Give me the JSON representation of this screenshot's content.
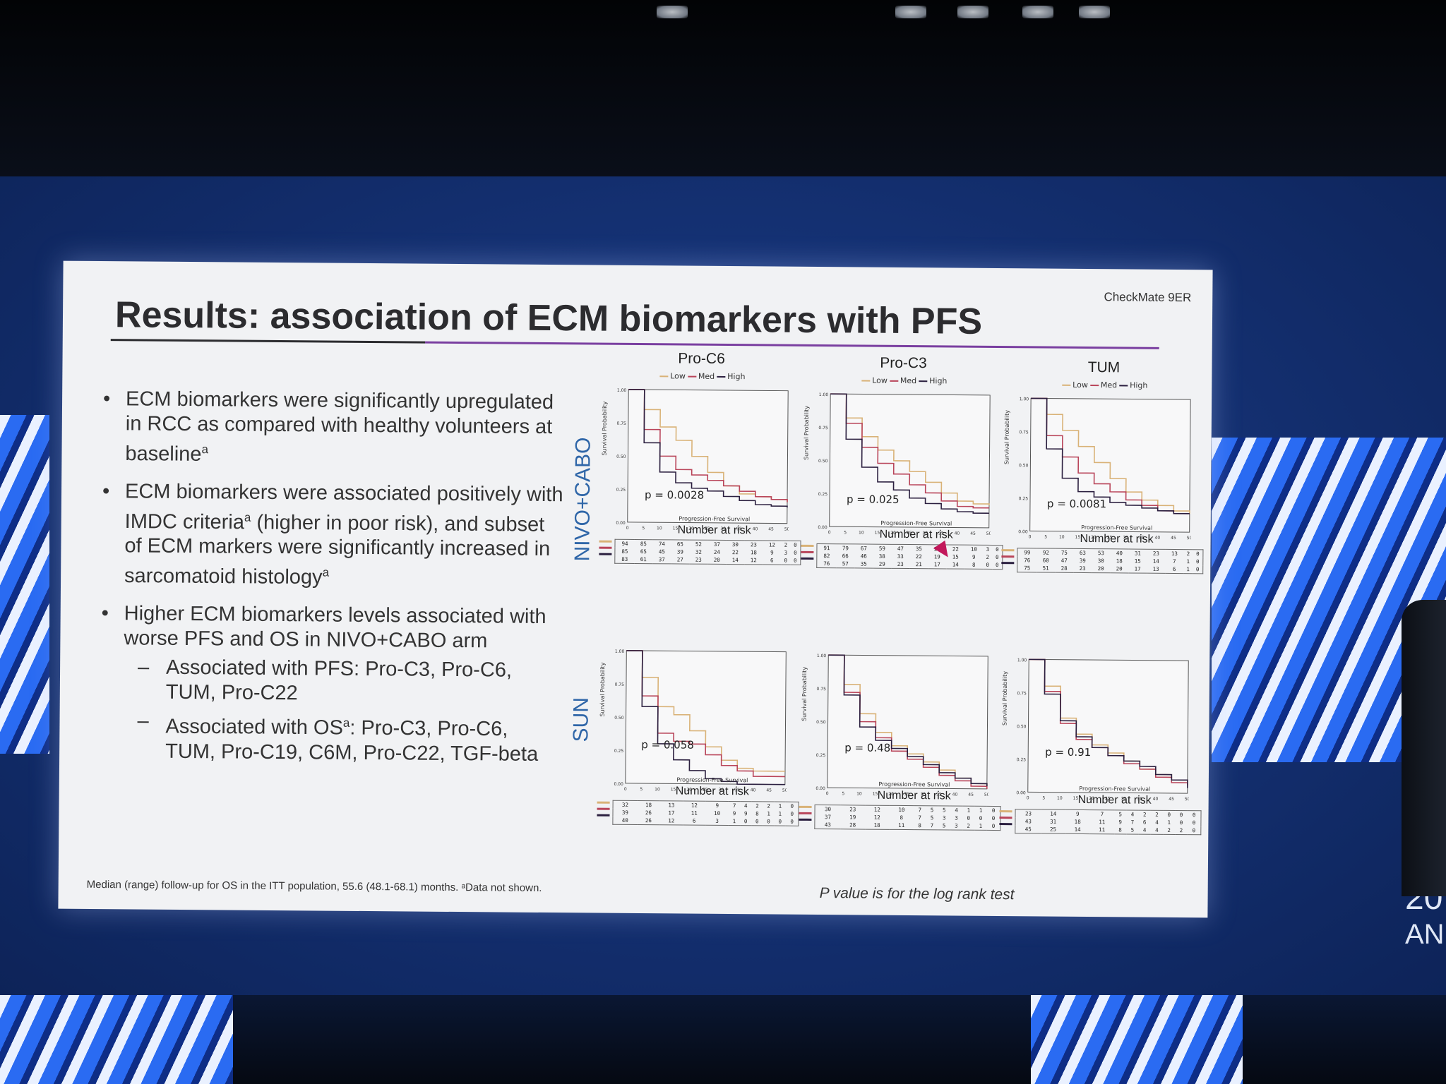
{
  "slide": {
    "title": "Results: association of ECM biomarkers with PFS",
    "study_tag": "CheckMate 9ER",
    "bullets": [
      {
        "text": "ECM biomarkers were significantly upregulated in RCC as compared with healthy volunteers at baseline",
        "sup": "a"
      },
      {
        "text": "ECM biomarkers were associated positively with IMDC criteria",
        "sup": "a",
        "text2": " (higher in poor risk), and subset of ECM markers were significantly increased in sarcomatoid histology",
        "sup2": "a"
      },
      {
        "text": "Higher ECM biomarkers levels associated with worse PFS and OS in NIVO+CABO arm"
      }
    ],
    "sub_bullets": [
      {
        "lead": "Associated with PFS: Pro-C3, Pro-C6, TUM, Pro-C22"
      },
      {
        "lead": "Associated with OS",
        "sup": "a",
        "rest": ": Pro-C3, Pro-C6, TUM, Pro-C19, C6M, Pro-C22, TGF-beta"
      }
    ],
    "bullet_glyph": "•",
    "dash_glyph": "–",
    "footnote": "Median (range) follow-up for OS in the ITT population, 55.6 (48.1-68.1) months. ᵃData not shown.",
    "pvalue_note": "P value is for the log rank test",
    "row_labels": [
      "NIVO+CABO",
      "SUN"
    ]
  },
  "event_text": {
    "year_fragment": "20",
    "name_fragment": "AN"
  },
  "legend": {
    "low": "Low",
    "med": "Med",
    "high": "High"
  },
  "colors": {
    "low": "#d9b277",
    "med": "#b9455a",
    "high": "#2b1f3f",
    "row_label": "#2f66a8",
    "title_rule": "#7a3fa0"
  },
  "axis_text": {
    "ylabel": "Survival Probability",
    "xlabel": "Progression-Free Survival",
    "number_at_risk": "Number at risk"
  },
  "chart_data": [
    {
      "type": "line",
      "panel": "NIVO+CABO / Pro-C6",
      "title": "Pro-C6",
      "pvalue": "p = 0.0028",
      "x": [
        0,
        5,
        10,
        15,
        20,
        25,
        30,
        35,
        40,
        45,
        50
      ],
      "series": [
        {
          "name": "Low",
          "values": [
            1.0,
            0.85,
            0.72,
            0.62,
            0.5,
            0.38,
            0.28,
            0.22,
            0.2,
            0.18,
            0.16
          ]
        },
        {
          "name": "Med",
          "values": [
            1.0,
            0.7,
            0.5,
            0.4,
            0.36,
            0.32,
            0.28,
            0.24,
            0.2,
            0.18,
            0.16
          ]
        },
        {
          "name": "High",
          "values": [
            1.0,
            0.6,
            0.38,
            0.3,
            0.26,
            0.24,
            0.2,
            0.17,
            0.14,
            0.13,
            0.12
          ]
        }
      ],
      "risk_table": [
        [
          "94",
          "85",
          "74",
          "65",
          "52",
          "37",
          "30",
          "23",
          "12",
          "2",
          "0"
        ],
        [
          "85",
          "65",
          "45",
          "39",
          "32",
          "24",
          "22",
          "18",
          "9",
          "3",
          "0"
        ],
        [
          "83",
          "61",
          "37",
          "27",
          "23",
          "20",
          "14",
          "12",
          "6",
          "0",
          "0"
        ]
      ],
      "ylim": [
        0,
        1
      ],
      "yticks": [
        "0.00",
        "0.25",
        "0.50",
        "0.75",
        "1.00"
      ],
      "xticks": [
        "0",
        "5",
        "10",
        "15",
        "20",
        "25",
        "30",
        "35",
        "40",
        "45",
        "50"
      ]
    },
    {
      "type": "line",
      "panel": "NIVO+CABO / Pro-C3",
      "title": "Pro-C3",
      "pvalue": "p = 0.025",
      "x": [
        0,
        5,
        10,
        15,
        20,
        25,
        30,
        35,
        40,
        45,
        50
      ],
      "series": [
        {
          "name": "Low",
          "values": [
            1.0,
            0.82,
            0.68,
            0.58,
            0.5,
            0.42,
            0.34,
            0.26,
            0.2,
            0.18,
            0.17
          ]
        },
        {
          "name": "Med",
          "values": [
            1.0,
            0.78,
            0.6,
            0.48,
            0.4,
            0.32,
            0.26,
            0.2,
            0.16,
            0.15,
            0.15
          ]
        },
        {
          "name": "High",
          "values": [
            1.0,
            0.66,
            0.45,
            0.34,
            0.28,
            0.22,
            0.18,
            0.14,
            0.12,
            0.11,
            0.11
          ]
        }
      ],
      "risk_table": [
        [
          "91",
          "79",
          "67",
          "59",
          "47",
          "35",
          "27",
          "22",
          "10",
          "3",
          "0"
        ],
        [
          "82",
          "66",
          "46",
          "38",
          "33",
          "22",
          "19",
          "15",
          "9",
          "2",
          "0"
        ],
        [
          "76",
          "57",
          "35",
          "29",
          "23",
          "21",
          "17",
          "14",
          "8",
          "0",
          "0"
        ]
      ],
      "ylim": [
        0,
        1
      ],
      "yticks": [
        "0.00",
        "0.25",
        "0.50",
        "0.75",
        "1.00"
      ],
      "xticks": [
        "0",
        "5",
        "10",
        "15",
        "20",
        "25",
        "30",
        "35",
        "40",
        "45",
        "50"
      ]
    },
    {
      "type": "line",
      "panel": "NIVO+CABO / TUM",
      "title": "TUM",
      "pvalue": "p = 0.0081",
      "x": [
        0,
        5,
        10,
        15,
        20,
        25,
        30,
        35,
        40,
        45,
        50
      ],
      "series": [
        {
          "name": "Low",
          "values": [
            1.0,
            0.88,
            0.76,
            0.64,
            0.52,
            0.4,
            0.3,
            0.24,
            0.2,
            0.16,
            0.14
          ]
        },
        {
          "name": "Med",
          "values": [
            1.0,
            0.72,
            0.56,
            0.44,
            0.36,
            0.3,
            0.24,
            0.2,
            0.16,
            0.14,
            0.14
          ]
        },
        {
          "name": "High",
          "values": [
            1.0,
            0.62,
            0.4,
            0.3,
            0.26,
            0.22,
            0.2,
            0.18,
            0.16,
            0.14,
            0.14
          ]
        }
      ],
      "risk_table": [
        [
          "99",
          "92",
          "75",
          "63",
          "53",
          "40",
          "31",
          "23",
          "13",
          "2",
          "0"
        ],
        [
          "76",
          "60",
          "47",
          "39",
          "30",
          "18",
          "15",
          "14",
          "7",
          "1",
          "0"
        ],
        [
          "75",
          "51",
          "28",
          "23",
          "20",
          "20",
          "17",
          "13",
          "6",
          "1",
          "0"
        ]
      ],
      "ylim": [
        0,
        1
      ],
      "yticks": [
        "0.00",
        "0.25",
        "0.50",
        "0.75",
        "1.00"
      ],
      "xticks": [
        "0",
        "5",
        "10",
        "15",
        "20",
        "25",
        "30",
        "35",
        "40",
        "45",
        "50"
      ]
    },
    {
      "type": "line",
      "panel": "SUN / Pro-C6",
      "title": "Pro-C6",
      "pvalue": "p = 0.058",
      "x": [
        0,
        5,
        10,
        15,
        20,
        25,
        30,
        35,
        40,
        45,
        50
      ],
      "series": [
        {
          "name": "Low",
          "values": [
            1.0,
            0.8,
            0.58,
            0.52,
            0.4,
            0.28,
            0.18,
            0.12,
            0.1,
            0.1,
            0.1
          ]
        },
        {
          "name": "Med",
          "values": [
            1.0,
            0.66,
            0.38,
            0.32,
            0.3,
            0.22,
            0.14,
            0.1,
            0.06,
            0.06,
            0.06
          ]
        },
        {
          "name": "High",
          "values": [
            1.0,
            0.58,
            0.3,
            0.18,
            0.1,
            0.04,
            0.02,
            0.0,
            0.0,
            0.0,
            0.0
          ]
        }
      ],
      "risk_table": [
        [
          "32",
          "18",
          "13",
          "12",
          "9",
          "7",
          "4",
          "2",
          "2",
          "1",
          "0"
        ],
        [
          "39",
          "26",
          "17",
          "11",
          "10",
          "9",
          "9",
          "8",
          "1",
          "1",
          "0"
        ],
        [
          "40",
          "26",
          "12",
          "6",
          "3",
          "1",
          "0",
          "0",
          "0",
          "0",
          "0"
        ]
      ],
      "ylim": [
        0,
        1
      ],
      "yticks": [
        "0.00",
        "0.25",
        "0.50",
        "0.75",
        "1.00"
      ],
      "xticks": [
        "0",
        "5",
        "10",
        "15",
        "20",
        "25",
        "30",
        "35",
        "40",
        "45",
        "50"
      ]
    },
    {
      "type": "line",
      "panel": "SUN / Pro-C3",
      "title": "Pro-C3",
      "pvalue": "p = 0.48",
      "x": [
        0,
        5,
        10,
        15,
        20,
        25,
        30,
        35,
        40,
        45,
        50
      ],
      "series": [
        {
          "name": "Low",
          "values": [
            1.0,
            0.78,
            0.56,
            0.42,
            0.32,
            0.26,
            0.2,
            0.14,
            0.08,
            0.04,
            0.02
          ]
        },
        {
          "name": "Med",
          "values": [
            1.0,
            0.72,
            0.5,
            0.38,
            0.28,
            0.22,
            0.16,
            0.1,
            0.06,
            0.02,
            0.0
          ]
        },
        {
          "name": "High",
          "values": [
            1.0,
            0.7,
            0.46,
            0.36,
            0.3,
            0.24,
            0.18,
            0.12,
            0.08,
            0.04,
            0.02
          ]
        }
      ],
      "risk_table": [
        [
          "30",
          "23",
          "12",
          "10",
          "7",
          "5",
          "5",
          "4",
          "1",
          "1",
          "0"
        ],
        [
          "37",
          "19",
          "12",
          "8",
          "7",
          "5",
          "3",
          "3",
          "0",
          "0",
          "0"
        ],
        [
          "43",
          "28",
          "18",
          "11",
          "8",
          "7",
          "5",
          "3",
          "2",
          "1",
          "0"
        ]
      ],
      "ylim": [
        0,
        1
      ],
      "yticks": [
        "0.00",
        "0.25",
        "0.50",
        "0.75",
        "1.00"
      ],
      "xticks": [
        "0",
        "5",
        "10",
        "15",
        "20",
        "25",
        "30",
        "35",
        "40",
        "45",
        "50"
      ]
    },
    {
      "type": "line",
      "panel": "SUN / TUM",
      "title": "TUM",
      "pvalue": "p = 0.91",
      "x": [
        0,
        5,
        10,
        15,
        20,
        25,
        30,
        35,
        40,
        45,
        50
      ],
      "series": [
        {
          "name": "Low",
          "values": [
            1.0,
            0.8,
            0.56,
            0.44,
            0.36,
            0.3,
            0.24,
            0.18,
            0.14,
            0.1,
            0.06
          ]
        },
        {
          "name": "Med",
          "values": [
            1.0,
            0.76,
            0.52,
            0.4,
            0.34,
            0.28,
            0.22,
            0.18,
            0.12,
            0.08,
            0.06
          ]
        },
        {
          "name": "High",
          "values": [
            1.0,
            0.74,
            0.54,
            0.42,
            0.34,
            0.28,
            0.24,
            0.2,
            0.14,
            0.1,
            0.04
          ]
        }
      ],
      "risk_table": [
        [
          "23",
          "14",
          "9",
          "7",
          "5",
          "4",
          "2",
          "2",
          "0",
          "0",
          "0"
        ],
        [
          "43",
          "31",
          "18",
          "11",
          "9",
          "7",
          "6",
          "4",
          "1",
          "0",
          "0"
        ],
        [
          "45",
          "25",
          "14",
          "11",
          "8",
          "5",
          "4",
          "4",
          "2",
          "2",
          "0"
        ]
      ],
      "ylim": [
        0,
        1
      ],
      "yticks": [
        "0.00",
        "0.25",
        "0.50",
        "0.75",
        "1.00"
      ],
      "xticks": [
        "0",
        "5",
        "10",
        "15",
        "20",
        "25",
        "30",
        "35",
        "40",
        "45",
        "50"
      ]
    }
  ]
}
